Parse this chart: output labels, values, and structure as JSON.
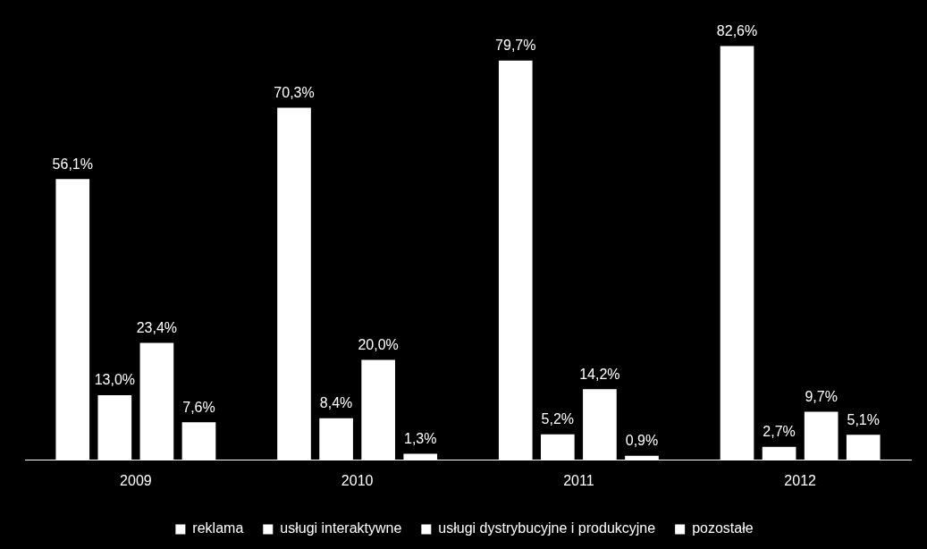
{
  "chart_data": {
    "type": "bar",
    "categories": [
      "2009",
      "2010",
      "2011",
      "2012"
    ],
    "series": [
      {
        "name": "reklama",
        "color": "#ffffff",
        "values": [
          56.1,
          70.3,
          79.7,
          82.6
        ],
        "value_labels": [
          "56,1%",
          "70,3%",
          "79,7%",
          "82,6%"
        ]
      },
      {
        "name": "usługi interaktywne",
        "color": "#ffffff",
        "values": [
          13.0,
          8.4,
          5.2,
          2.7
        ],
        "value_labels": [
          "13,0%",
          "8,4%",
          "5,2%",
          "2,7%"
        ]
      },
      {
        "name": "usługi dystrybucyjne i produkcyjne",
        "color": "#ffffff",
        "values": [
          23.4,
          20.0,
          14.2,
          9.7
        ],
        "value_labels": [
          "23,4%",
          "20,0%",
          "14,2%",
          "9,7%"
        ]
      },
      {
        "name": "pozostałe",
        "color": "#ffffff",
        "values": [
          7.6,
          1.3,
          0.9,
          5.1
        ],
        "value_labels": [
          "7,6%",
          "1,3%",
          "0,9%",
          "5,1%"
        ]
      }
    ],
    "legend": "bottom"
  }
}
